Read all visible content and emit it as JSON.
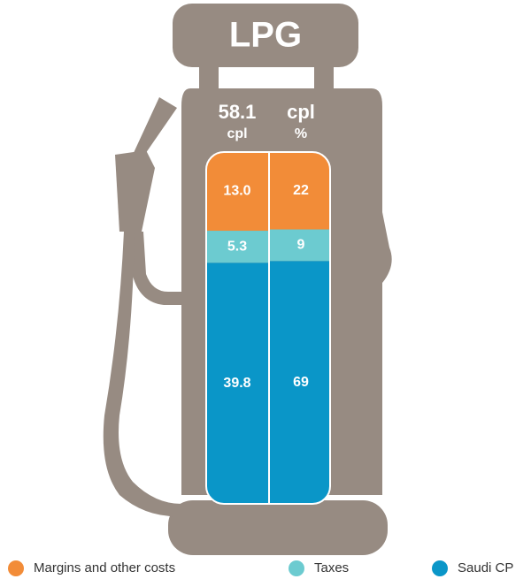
{
  "chart_data": {
    "type": "pump-stacked-bar",
    "title": "LPG",
    "column_headers": [
      [
        "58.1",
        "cpl"
      ],
      [
        "cpl",
        "%"
      ]
    ],
    "series": [
      {
        "name": "Margins and other costs",
        "color": "#f28c38",
        "values": [
          13.0,
          22
        ],
        "value_labels": [
          "13.0",
          "22"
        ]
      },
      {
        "name": "Taxes",
        "color": "#6ccbd0",
        "values": [
          5.3,
          9
        ]
      },
      {
        "name": "Saudi CP",
        "color": "#0a96c8",
        "values": [
          39.8,
          69
        ]
      }
    ]
  }
}
